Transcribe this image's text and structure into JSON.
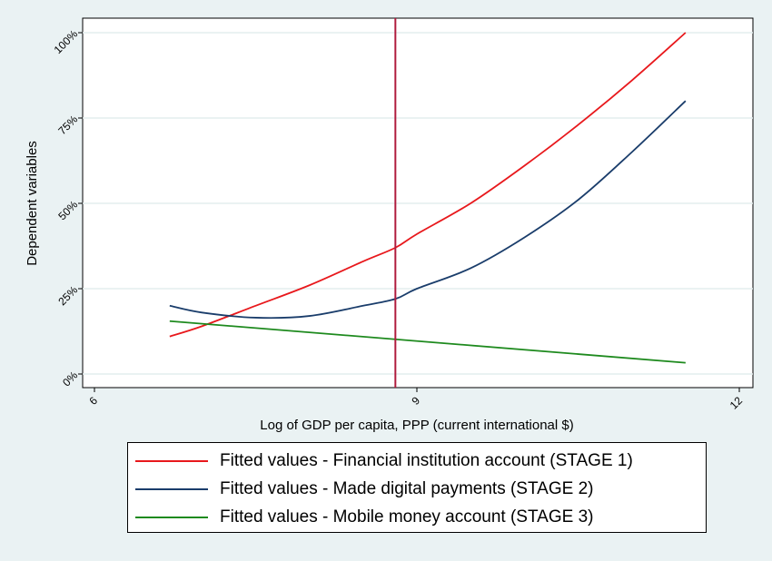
{
  "chart_data": {
    "type": "line",
    "xlabel": "Log of GDP per capita, PPP (current international $)",
    "ylabel": "Dependent variables",
    "xlim": [
      6,
      12
    ],
    "ylim": [
      0,
      1
    ],
    "x_ticks": [
      {
        "value": 6,
        "label": "6"
      },
      {
        "value": 9,
        "label": "9"
      },
      {
        "value": 12,
        "label": "12"
      }
    ],
    "y_ticks": [
      {
        "value": 0,
        "label": "0%"
      },
      {
        "value": 0.25,
        "label": "25%"
      },
      {
        "value": 0.5,
        "label": "50%"
      },
      {
        "value": 0.75,
        "label": "75%"
      },
      {
        "value": 1,
        "label": "100%"
      }
    ],
    "grid": true,
    "vertical_line": {
      "x": 8.8,
      "color": "#b01c3e"
    },
    "legend_position": "bottom",
    "series": [
      {
        "name": "Fitted values - Financial institution account (STAGE 1)",
        "color": "#e8181c",
        "x": [
          6.7,
          7.0,
          7.5,
          8.0,
          8.5,
          8.8,
          9.0,
          9.5,
          10.0,
          10.5,
          11.0,
          11.5
        ],
        "y": [
          0.11,
          0.14,
          0.2,
          0.26,
          0.33,
          0.37,
          0.41,
          0.5,
          0.61,
          0.73,
          0.86,
          1.0
        ]
      },
      {
        "name": "Fitted values - Made digital payments (STAGE 2)",
        "color": "#1a3d6b",
        "x": [
          6.7,
          7.0,
          7.5,
          8.0,
          8.5,
          8.8,
          9.0,
          9.5,
          10.0,
          10.5,
          11.0,
          11.5
        ],
        "y": [
          0.2,
          0.18,
          0.165,
          0.17,
          0.2,
          0.22,
          0.25,
          0.31,
          0.4,
          0.51,
          0.65,
          0.8
        ]
      },
      {
        "name": "Fitted values - Mobile money account (STAGE 3)",
        "color": "#1e8a1e",
        "x": [
          6.7,
          11.5
        ],
        "y": [
          0.155,
          0.033
        ]
      }
    ]
  }
}
